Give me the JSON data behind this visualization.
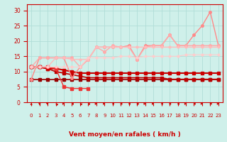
{
  "xlabel": "Vent moyen/en rafales ( km/h )",
  "xlim": [
    -0.5,
    23.5
  ],
  "ylim": [
    0,
    32
  ],
  "yticks": [
    0,
    5,
    10,
    15,
    20,
    25,
    30
  ],
  "xticks": [
    0,
    1,
    2,
    3,
    4,
    5,
    6,
    7,
    8,
    9,
    10,
    11,
    12,
    13,
    14,
    15,
    16,
    17,
    18,
    19,
    20,
    21,
    22,
    23
  ],
  "bg_color": "#cff0ea",
  "grid_color": "#b0ddd8",
  "series": [
    {
      "x": [
        0,
        1,
        2,
        3,
        4,
        5,
        6,
        7,
        8,
        9,
        10,
        11,
        12,
        13,
        14,
        15,
        16,
        17,
        18,
        19,
        20,
        21,
        22,
        23
      ],
      "y": [
        7.5,
        7.5,
        7.5,
        7.5,
        7.5,
        7.5,
        7.5,
        7.5,
        7.5,
        7.5,
        7.5,
        7.5,
        7.5,
        7.5,
        7.5,
        7.5,
        7.5,
        7.5,
        7.5,
        7.5,
        7.5,
        7.5,
        7.5,
        7.5
      ],
      "color": "#990000",
      "linewidth": 1.2,
      "marker": "s",
      "markersize": 2.5
    },
    {
      "x": [
        0,
        1,
        2,
        3,
        4,
        5,
        6,
        7,
        8,
        9,
        10,
        11,
        12,
        13,
        14,
        15,
        16,
        17,
        18,
        19,
        20,
        21,
        22,
        23
      ],
      "y": [
        11.5,
        11.5,
        11.0,
        10.0,
        9.5,
        9.0,
        8.5,
        8.0,
        8.0,
        8.0,
        8.0,
        8.0,
        8.0,
        8.0,
        8.0,
        8.0,
        8.0,
        7.5,
        7.5,
        7.5,
        7.5,
        7.5,
        7.5,
        7.5
      ],
      "color": "#bb0000",
      "linewidth": 1.2,
      "marker": "s",
      "markersize": 2.5
    },
    {
      "x": [
        0,
        1,
        2,
        3,
        4,
        5,
        6,
        7,
        8,
        9,
        10,
        11,
        12,
        13,
        14,
        15,
        16,
        17,
        18,
        19,
        20,
        21,
        22,
        23
      ],
      "y": [
        11.5,
        11.5,
        11.0,
        11.0,
        10.5,
        10.0,
        9.5,
        9.5,
        9.5,
        9.5,
        9.5,
        9.5,
        9.5,
        9.5,
        9.5,
        9.5,
        9.5,
        9.5,
        9.5,
        9.5,
        9.5,
        9.5,
        9.5,
        9.5
      ],
      "color": "#cc0000",
      "linewidth": 1.5,
      "marker": "s",
      "markersize": 2.5
    },
    {
      "x": [
        0,
        1,
        2,
        3,
        4,
        5,
        6,
        7,
        8
      ],
      "y": [
        11.5,
        11.5,
        11.5,
        11.0,
        5.0,
        4.5,
        4.5,
        4.5,
        null
      ],
      "color": "#ee3333",
      "linewidth": 1.0,
      "marker": "s",
      "markersize": 2.5
    },
    {
      "x": [
        0,
        1,
        2,
        3,
        4,
        5,
        6,
        7,
        8,
        9,
        10,
        11,
        12,
        13,
        14,
        15,
        16,
        17,
        18,
        19,
        20,
        21,
        22,
        23
      ],
      "y": [
        7.5,
        14.5,
        14.5,
        14.5,
        14.5,
        8.0,
        11.5,
        14.0,
        18.0,
        18.0,
        18.0,
        18.0,
        18.5,
        14.0,
        18.5,
        18.5,
        18.5,
        22.0,
        18.5,
        18.5,
        22.0,
        25.0,
        29.5,
        18.5
      ],
      "color": "#ff8888",
      "linewidth": 1.0,
      "marker": "o",
      "markersize": 2.5
    },
    {
      "x": [
        0,
        1,
        2,
        3,
        4,
        5,
        6,
        7,
        8,
        9,
        10,
        11,
        12,
        13,
        14,
        15,
        16,
        17,
        18,
        19,
        20,
        21,
        22,
        23
      ],
      "y": [
        11.5,
        14.5,
        14.5,
        14.5,
        14.5,
        14.5,
        11.5,
        14.0,
        18.0,
        16.5,
        18.5,
        18.0,
        18.0,
        14.0,
        18.0,
        18.5,
        18.5,
        22.0,
        18.5,
        18.5,
        18.5,
        18.5,
        18.5,
        18.5
      ],
      "color": "#ffaaaa",
      "linewidth": 1.0,
      "marker": "o",
      "markersize": 2.5
    },
    {
      "x": [
        0,
        1,
        2,
        3,
        4,
        5,
        6,
        7,
        8,
        9,
        10,
        11,
        12,
        13,
        14,
        15,
        16,
        17,
        18,
        19,
        20,
        21,
        22,
        23
      ],
      "y": [
        11.5,
        11.5,
        11.5,
        14.5,
        14.5,
        14.0,
        14.0,
        14.0,
        18.0,
        18.0,
        18.0,
        18.0,
        18.0,
        18.0,
        18.0,
        18.0,
        18.0,
        18.0,
        18.0,
        18.0,
        18.0,
        18.0,
        18.0,
        18.0
      ],
      "color": "#ffbbbb",
      "linewidth": 1.0,
      "marker": "o",
      "markersize": 2.0
    },
    {
      "x": [
        0,
        1,
        2,
        3,
        4,
        5,
        6,
        7,
        8,
        9,
        10,
        11,
        12,
        13,
        14,
        15,
        16,
        17,
        18,
        19,
        20,
        21,
        22,
        23
      ],
      "y": [
        11.5,
        11.5,
        11.5,
        11.5,
        11.5,
        11.5,
        11.5,
        14.5,
        14.5,
        14.5,
        14.5,
        15.0,
        15.0,
        14.5,
        15.0,
        15.0,
        15.0,
        15.0,
        15.0,
        15.5,
        15.5,
        15.5,
        15.5,
        15.5
      ],
      "color": "#ffcccc",
      "linewidth": 0.8,
      "marker": "o",
      "markersize": 2.0
    }
  ],
  "wind_angles": [
    180,
    200,
    215,
    220,
    90,
    250,
    230,
    240,
    100,
    95,
    280,
    270,
    260,
    250,
    100,
    95,
    280,
    270,
    250,
    100,
    260,
    90,
    280,
    95
  ],
  "arrow_color": "#cc0000",
  "xlabel_color": "#cc0000",
  "tick_color": "#cc0000",
  "spine_color": "#cc0000"
}
